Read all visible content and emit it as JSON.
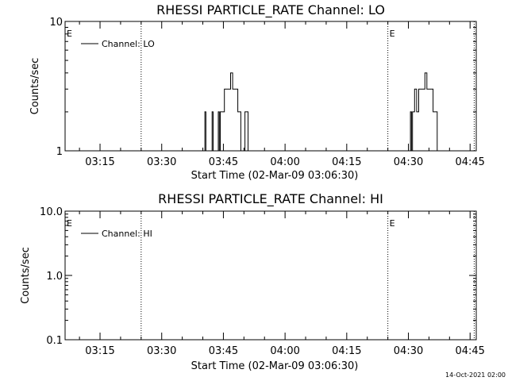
{
  "footer_timestamp": "14-Oct-2021 02:00",
  "chart_data": [
    {
      "type": "line",
      "title": "RHESSI PARTICLE_RATE Channel: LO",
      "xlabel": "Start Time (02-Mar-09 03:06:30)",
      "ylabel": "Counts/sec",
      "y_scale": "log",
      "ylim": [
        1,
        10
      ],
      "y_ticks": [
        1,
        10
      ],
      "y_tick_labels": [
        "1",
        "10"
      ],
      "xlim": [
        "03:06:30",
        "04:46:30"
      ],
      "x_ticks": [
        "03:15",
        "03:30",
        "03:45",
        "04:00",
        "04:15",
        "04:30",
        "04:45"
      ],
      "grid": false,
      "legend": {
        "position": "top-left",
        "entries": [
          "Channel: LO"
        ]
      },
      "markers": [
        {
          "label": "E",
          "time": "03:06:30"
        },
        {
          "label": "E",
          "time": "04:25:00"
        }
      ],
      "dotted_lines": [
        "03:25:00",
        "04:25:00",
        "04:46:00"
      ],
      "series": [
        {
          "name": "Channel: LO",
          "color": "#000000",
          "points": [
            [
              "03:06:30",
              1
            ],
            [
              "03:40:15",
              1
            ],
            [
              "03:40:30",
              2
            ],
            [
              "03:40:45",
              1
            ],
            [
              "03:42:00",
              1
            ],
            [
              "03:42:15",
              2
            ],
            [
              "03:42:30",
              1
            ],
            [
              "03:43:30",
              1
            ],
            [
              "03:43:45",
              2
            ],
            [
              "03:44:00",
              1
            ],
            [
              "03:44:15",
              2
            ],
            [
              "03:44:45",
              2
            ],
            [
              "03:45:15",
              3
            ],
            [
              "03:46:00",
              3
            ],
            [
              "03:46:45",
              4
            ],
            [
              "03:47:15",
              3
            ],
            [
              "03:48:00",
              3
            ],
            [
              "03:48:30",
              2
            ],
            [
              "03:49:00",
              2
            ],
            [
              "03:49:15",
              1
            ],
            [
              "03:50:00",
              1
            ],
            [
              "03:50:15",
              2
            ],
            [
              "03:50:45",
              2
            ],
            [
              "03:51:00",
              1
            ],
            [
              "04:30:00",
              1
            ],
            [
              "04:30:30",
              2
            ],
            [
              "04:30:45",
              1
            ],
            [
              "04:31:00",
              2
            ],
            [
              "04:31:30",
              3
            ],
            [
              "04:32:00",
              2
            ],
            [
              "04:32:30",
              3
            ],
            [
              "04:33:00",
              3
            ],
            [
              "04:33:30",
              3
            ],
            [
              "04:34:00",
              4
            ],
            [
              "04:34:30",
              3
            ],
            [
              "04:35:00",
              3
            ],
            [
              "04:35:30",
              3
            ],
            [
              "04:36:00",
              2
            ],
            [
              "04:36:30",
              2
            ],
            [
              "04:37:00",
              1
            ],
            [
              "04:46:30",
              1
            ]
          ]
        }
      ]
    },
    {
      "type": "line",
      "title": "RHESSI PARTICLE_RATE Channel: HI",
      "xlabel": "Start Time (02-Mar-09 03:06:30)",
      "ylabel": "Counts/sec",
      "y_scale": "log",
      "ylim": [
        0.1,
        10
      ],
      "y_ticks": [
        0.1,
        1,
        10
      ],
      "y_tick_labels": [
        "0.1",
        "1.0",
        "10.0"
      ],
      "xlim": [
        "03:06:30",
        "04:46:30"
      ],
      "x_ticks": [
        "03:15",
        "03:30",
        "03:45",
        "04:00",
        "04:15",
        "04:30",
        "04:45"
      ],
      "grid": false,
      "legend": {
        "position": "top-left",
        "entries": [
          "Channel: HI"
        ]
      },
      "markers": [
        {
          "label": "E",
          "time": "03:06:30"
        },
        {
          "label": "E",
          "time": "04:25:00"
        }
      ],
      "dotted_lines": [
        "03:25:00",
        "04:25:00",
        "04:46:00"
      ],
      "series": [
        {
          "name": "Channel: HI",
          "color": "#000000",
          "points": []
        }
      ]
    }
  ]
}
